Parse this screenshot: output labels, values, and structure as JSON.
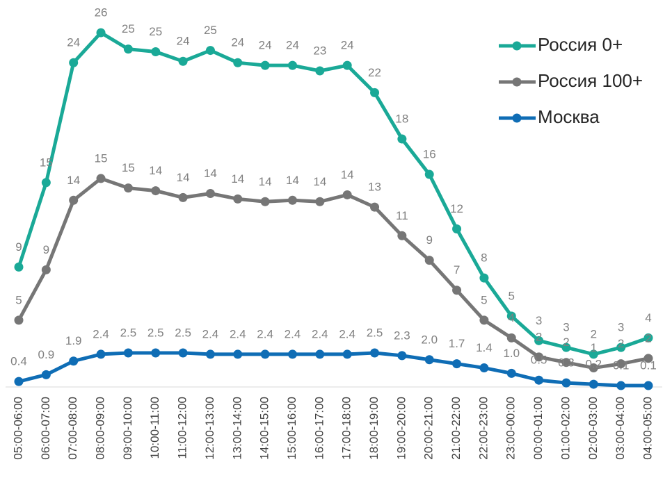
{
  "chart_data": {
    "type": "line",
    "categories": [
      "05:00-06:00",
      "06:00-07:00",
      "07:00-08:00",
      "08:00-09:00",
      "09:00-10:00",
      "10:00-11:00",
      "11:00-12:00",
      "12:00-13:00",
      "13:00-14:00",
      "14:00-15:00",
      "15:00-16:00",
      "16:00-17:00",
      "17:00-18:00",
      "18:00-19:00",
      "19:00-20:00",
      "20:00-21:00",
      "21:00-22:00",
      "22:00-23:00",
      "23:00-00:00",
      "00:00-01:00",
      "01:00-02:00",
      "02:00-03:00",
      "03:00-04:00",
      "04:00-05:00"
    ],
    "ylim": [
      0,
      28.4
    ],
    "legend": "top-right",
    "series": [
      {
        "name": "Россия 0+",
        "color": "#1aa997",
        "values": [
          8.8,
          15.0,
          23.8,
          26.0,
          24.8,
          24.6,
          23.9,
          24.7,
          23.8,
          23.6,
          23.6,
          23.2,
          23.6,
          21.6,
          18.2,
          15.6,
          11.6,
          8.0,
          5.2,
          3.4,
          2.9,
          2.4,
          2.9,
          3.6
        ],
        "value_labels": [
          "9",
          "15",
          "24",
          "26",
          "25",
          "25",
          "24",
          "25",
          "24",
          "24",
          "24",
          "23",
          "24",
          "22",
          "18",
          "16",
          "12",
          "8",
          "5",
          "3",
          "3",
          "2",
          "3",
          "4"
        ]
      },
      {
        "name": "Россия 100+",
        "color": "#767676",
        "values": [
          4.9,
          8.6,
          13.7,
          15.3,
          14.6,
          14.4,
          13.9,
          14.2,
          13.8,
          13.6,
          13.7,
          13.6,
          14.1,
          13.2,
          11.1,
          9.3,
          7.1,
          4.9,
          3.6,
          2.2,
          1.8,
          1.4,
          1.7,
          2.1
        ],
        "value_labels": [
          "5",
          "9",
          "14",
          "15",
          "15",
          "14",
          "14",
          "14",
          "14",
          "14",
          "14",
          "14",
          "14",
          "13",
          "11",
          "9",
          "7",
          "5",
          "4",
          "2",
          "2",
          "1",
          "2",
          "2"
        ]
      },
      {
        "name": "Москва",
        "color": "#0f6db5",
        "values": [
          0.4,
          0.9,
          1.9,
          2.4,
          2.5,
          2.5,
          2.5,
          2.4,
          2.4,
          2.4,
          2.4,
          2.4,
          2.4,
          2.5,
          2.3,
          2.0,
          1.7,
          1.4,
          1.0,
          0.5,
          0.3,
          0.2,
          0.1,
          0.1
        ],
        "value_labels": [
          "0.4",
          "0.9",
          "1.9",
          "2.4",
          "2.5",
          "2.5",
          "2.5",
          "2.4",
          "2.4",
          "2.4",
          "2.4",
          "2.4",
          "2.4",
          "2.5",
          "2.3",
          "2.0",
          "1.7",
          "1.4",
          "1.0",
          "0.5",
          "0.3",
          "0.2",
          "0.1",
          "0.1"
        ]
      }
    ]
  }
}
